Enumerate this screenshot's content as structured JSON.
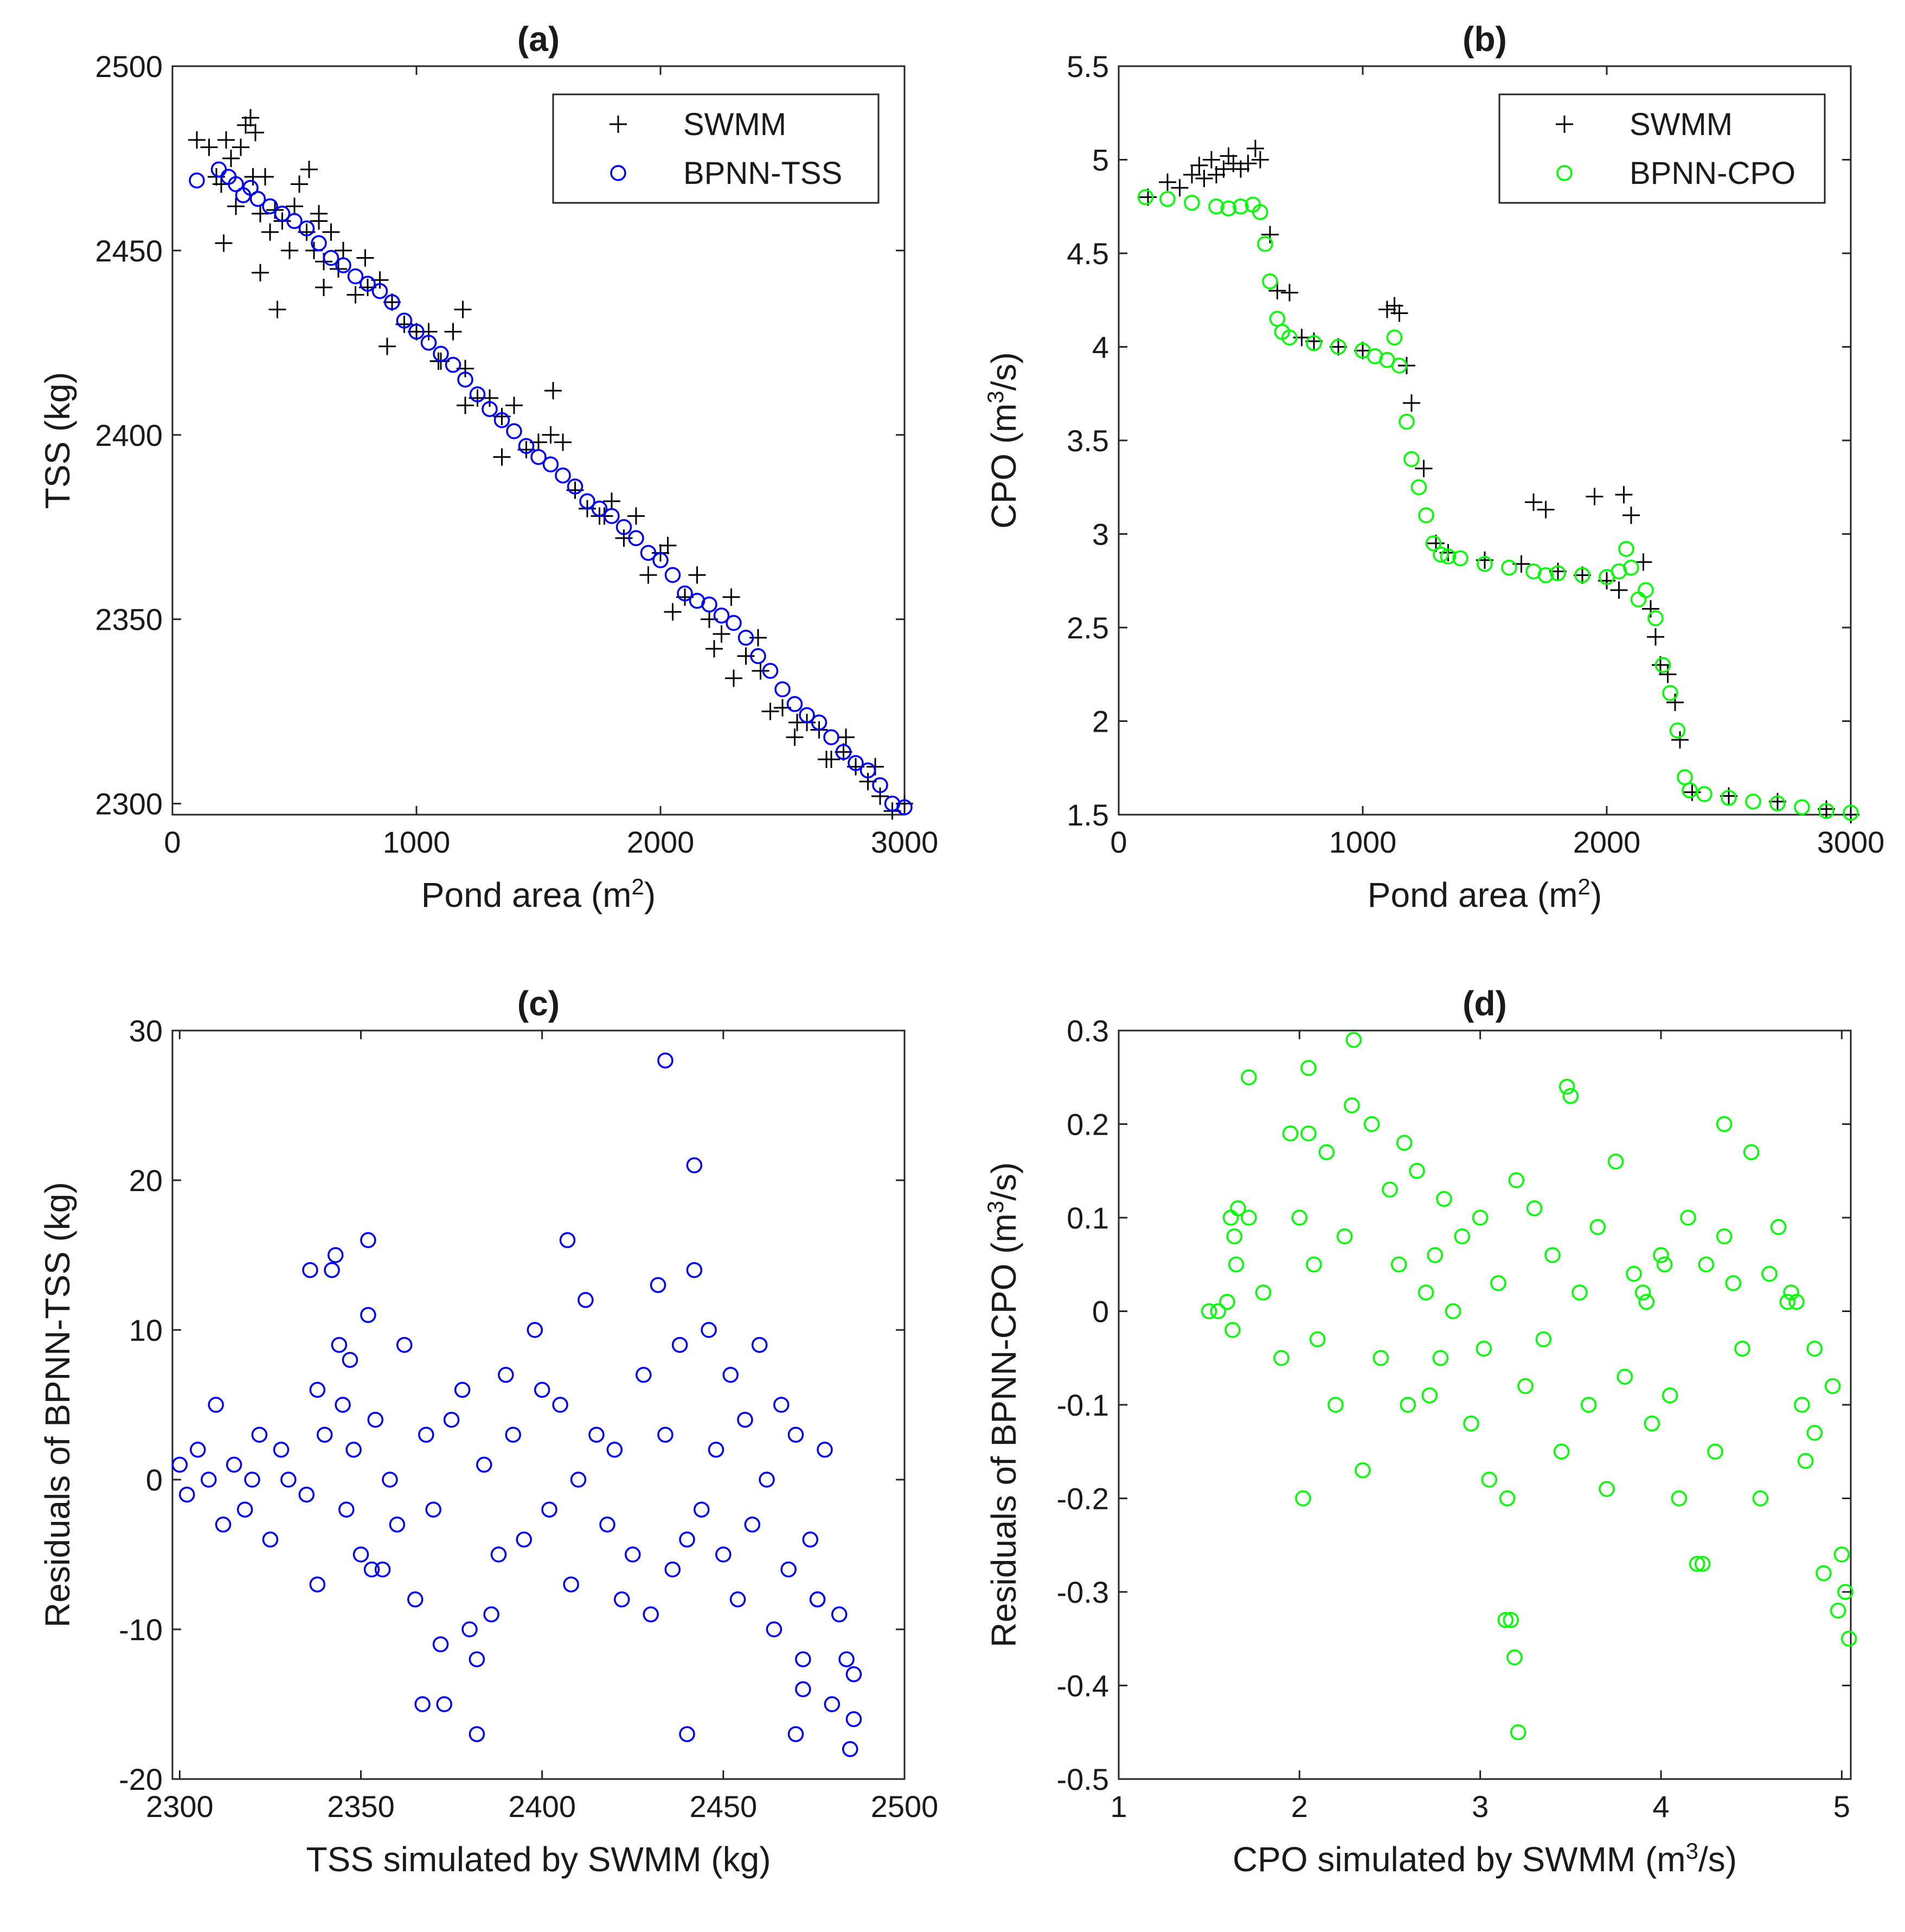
{
  "chart_data": [
    {
      "type": "scatter",
      "title": "(a)",
      "xlabel": "Pond area",
      "xlabel_unit": "(m",
      "xlabel_sup": "2",
      "xlabel_tail": ")",
      "ylabel": "TSS (kg)",
      "xlim": [
        0,
        3000
      ],
      "ylim": [
        2297,
        2500
      ],
      "xticks": [
        "0",
        "1000",
        "2000",
        "3000"
      ],
      "yticks": [
        "2300",
        "2350",
        "2400",
        "2450",
        "2500"
      ],
      "legend": {
        "position": "top-right",
        "entries": [
          "SWMM",
          "BPNN-TSS"
        ]
      },
      "series": [
        {
          "name": "SWMM",
          "marker": "plus",
          "color": "#000000",
          "x": [
            100,
            150,
            180,
            200,
            220,
            240,
            260,
            280,
            300,
            320,
            340,
            360,
            380,
            400,
            420,
            450,
            480,
            500,
            520,
            550,
            580,
            600,
            620,
            650,
            680,
            700,
            750,
            800,
            850,
            900,
            950,
            1000,
            1050,
            1100,
            1150,
            1200,
            1250,
            1300,
            1350,
            1400,
            1450,
            1500,
            1550,
            1600,
            1650,
            1700,
            1750,
            1800,
            1850,
            1900,
            1950,
            2000,
            2050,
            2100,
            2150,
            2200,
            2250,
            2300,
            2350,
            2400,
            2450,
            2500,
            2550,
            2600,
            2650,
            2700,
            2750,
            2800,
            2850,
            2900,
            2950,
            3000,
            210,
            330,
            360,
            430,
            560,
            600,
            620,
            790,
            880,
            1090,
            1190,
            1200,
            1350,
            1560,
            1770,
            2030,
            2220,
            2290,
            2410,
            2560,
            2680,
            2760,
            2880
          ],
          "y": [
            2480,
            2478,
            2470,
            2468,
            2480,
            2475,
            2462,
            2478,
            2484,
            2486,
            2482,
            2460,
            2470,
            2455,
            2461,
            2458,
            2450,
            2462,
            2468,
            2455,
            2450,
            2460,
            2447,
            2455,
            2445,
            2450,
            2438,
            2440,
            2442,
            2436,
            2430,
            2428,
            2428,
            2420,
            2428,
            2418,
            2410,
            2410,
            2405,
            2408,
            2396,
            2398,
            2400,
            2398,
            2385,
            2380,
            2378,
            2382,
            2372,
            2378,
            2362,
            2368,
            2352,
            2356,
            2362,
            2350,
            2346,
            2334,
            2340,
            2345,
            2325,
            2326,
            2318,
            2322,
            2320,
            2312,
            2314,
            2310,
            2306,
            2302,
            2298,
            2300,
            2452,
            2470,
            2444,
            2434,
            2472,
            2458,
            2440,
            2448,
            2424,
            2420,
            2434,
            2408,
            2394,
            2412,
            2378,
            2370,
            2342,
            2356,
            2336,
            2322,
            2312,
            2318,
            2310
          ]
        },
        {
          "name": "BPNN-TSS",
          "marker": "circle",
          "color": "#0000ff",
          "x": [
            100,
            190,
            230,
            260,
            290,
            320,
            350,
            400,
            450,
            500,
            550,
            600,
            650,
            700,
            750,
            800,
            850,
            900,
            950,
            1000,
            1050,
            1100,
            1150,
            1200,
            1250,
            1300,
            1350,
            1400,
            1450,
            1500,
            1550,
            1600,
            1650,
            1700,
            1750,
            1800,
            1850,
            1900,
            1950,
            2000,
            2050,
            2100,
            2150,
            2200,
            2250,
            2300,
            2350,
            2400,
            2450,
            2500,
            2550,
            2600,
            2650,
            2700,
            2750,
            2800,
            2850,
            2900,
            2950,
            3000
          ],
          "y": [
            2469,
            2472,
            2470,
            2468,
            2465,
            2467,
            2464,
            2462,
            2460,
            2458,
            2456,
            2452,
            2448,
            2446,
            2443,
            2441,
            2439,
            2436,
            2431,
            2428,
            2425,
            2422,
            2419,
            2415,
            2411,
            2407,
            2404,
            2401,
            2397,
            2394,
            2392,
            2389,
            2386,
            2382,
            2380,
            2378,
            2375,
            2372,
            2368,
            2366,
            2362,
            2357,
            2355,
            2354,
            2351,
            2349,
            2345,
            2340,
            2336,
            2331,
            2327,
            2324,
            2322,
            2318,
            2314,
            2311,
            2309,
            2305,
            2300,
            2299
          ]
        }
      ]
    },
    {
      "type": "scatter",
      "title": "(b)",
      "xlabel": "Pond area",
      "xlabel_unit": "(m",
      "xlabel_sup": "2",
      "xlabel_tail": ")",
      "ylabel": "CPO (m",
      "ylabel_sup": "3",
      "ylabel_tail": "/s)",
      "xlim": [
        0,
        3000
      ],
      "ylim": [
        1.5,
        5.5
      ],
      "xticks": [
        "0",
        "1000",
        "2000",
        "3000"
      ],
      "yticks": [
        "1.5",
        "2",
        "2.5",
        "3",
        "3.5",
        "4",
        "4.5",
        "5",
        "5.5"
      ],
      "legend": {
        "position": "top-right",
        "entries": [
          "SWMM",
          "BPNN-CPO"
        ]
      },
      "series": [
        {
          "name": "SWMM",
          "marker": "plus",
          "color": "#000000",
          "x": [
            120,
            200,
            250,
            300,
            330,
            350,
            380,
            400,
            430,
            450,
            470,
            500,
            530,
            560,
            580,
            620,
            650,
            700,
            750,
            800,
            900,
            1000,
            1100,
            1130,
            1150,
            1180,
            1200,
            1250,
            1300,
            1350,
            1500,
            1650,
            1700,
            1750,
            1800,
            1900,
            1950,
            2000,
            2050,
            2070,
            2100,
            2150,
            2180,
            2200,
            2220,
            2250,
            2280,
            2300,
            2350,
            2500,
            2700,
            2900,
            3000
          ],
          "y": [
            4.8,
            4.88,
            4.85,
            4.92,
            4.97,
            4.9,
            5.0,
            4.92,
            4.95,
            5.02,
            4.98,
            4.95,
            4.98,
            5.06,
            5.0,
            4.6,
            4.3,
            4.29,
            4.05,
            4.03,
            4.0,
            3.98,
            4.2,
            4.22,
            4.18,
            3.9,
            3.7,
            3.35,
            2.95,
            2.9,
            2.86,
            2.84,
            3.17,
            3.13,
            2.8,
            2.78,
            3.2,
            2.75,
            2.7,
            3.21,
            3.1,
            2.85,
            2.6,
            2.45,
            2.3,
            2.25,
            2.1,
            1.9,
            1.62,
            1.6,
            1.57,
            1.53,
            1.5
          ]
        },
        {
          "name": "BPNN-CPO",
          "marker": "circle",
          "color": "#00ff00",
          "x": [
            110,
            200,
            300,
            400,
            450,
            500,
            550,
            580,
            600,
            620,
            650,
            670,
            700,
            800,
            900,
            1000,
            1050,
            1100,
            1130,
            1150,
            1180,
            1200,
            1230,
            1260,
            1290,
            1320,
            1350,
            1400,
            1500,
            1600,
            1700,
            1750,
            1800,
            1900,
            2000,
            2050,
            2080,
            2100,
            2130,
            2160,
            2200,
            2230,
            2260,
            2290,
            2320,
            2340,
            2400,
            2500,
            2600,
            2700,
            2800,
            2900,
            3000
          ],
          "y": [
            4.8,
            4.79,
            4.77,
            4.75,
            4.74,
            4.75,
            4.76,
            4.72,
            4.55,
            4.35,
            4.15,
            4.08,
            4.05,
            4.02,
            4.0,
            3.98,
            3.95,
            3.93,
            4.05,
            3.9,
            3.6,
            3.4,
            3.25,
            3.1,
            2.95,
            2.89,
            2.88,
            2.87,
            2.84,
            2.82,
            2.8,
            2.78,
            2.79,
            2.78,
            2.77,
            2.8,
            2.92,
            2.82,
            2.65,
            2.7,
            2.55,
            2.3,
            2.15,
            1.95,
            1.7,
            1.63,
            1.61,
            1.59,
            1.57,
            1.56,
            1.54,
            1.52,
            1.51
          ]
        }
      ]
    },
    {
      "type": "scatter",
      "title": "(c)",
      "xlabel": "TSS simulated by SWMM (kg)",
      "ylabel": "Residuals of BPNN-TSS (kg)",
      "xlim": [
        2298,
        2500
      ],
      "ylim": [
        -20,
        30
      ],
      "xticks": [
        "2300",
        "2350",
        "2400",
        "2450",
        "2500"
      ],
      "yticks": [
        "-20",
        "-10",
        "0",
        "10",
        "20",
        "30"
      ],
      "series": [
        {
          "name": "Residuals",
          "marker": "circle",
          "color": "#0000ff",
          "x": [
            2300,
            2302,
            2305,
            2308,
            2310,
            2312,
            2315,
            2318,
            2320,
            2322,
            2325,
            2328,
            2330,
            2335,
            2338,
            2340,
            2342,
            2344,
            2345,
            2346,
            2347,
            2348,
            2350,
            2352,
            2354,
            2356,
            2358,
            2360,
            2362,
            2365,
            2368,
            2370,
            2372,
            2375,
            2378,
            2380,
            2382,
            2384,
            2386,
            2388,
            2390,
            2392,
            2395,
            2398,
            2400,
            2402,
            2405,
            2408,
            2410,
            2412,
            2415,
            2418,
            2420,
            2422,
            2425,
            2428,
            2430,
            2432,
            2434,
            2436,
            2438,
            2440,
            2442,
            2444,
            2446,
            2448,
            2450,
            2452,
            2454,
            2456,
            2458,
            2460,
            2462,
            2464,
            2466,
            2468,
            2470,
            2472,
            2474,
            2476,
            2478,
            2480,
            2482,
            2484,
            2486,
            2434,
            2442,
            2407,
            2352,
            2343,
            2382,
            2367,
            2373,
            2440,
            2485,
            2470,
            2472,
            2486,
            2476,
            2353,
            2338,
            2336
          ],
          "y": [
            1,
            -1,
            2,
            0,
            5,
            -3,
            1,
            -2,
            0,
            3,
            -4,
            2,
            0,
            -1,
            6,
            3,
            14,
            9,
            5,
            -2,
            8,
            2,
            -5,
            11,
            4,
            -6,
            0,
            -3,
            9,
            -8,
            3,
            -2,
            -11,
            4,
            6,
            -10,
            -12,
            1,
            -9,
            -5,
            7,
            3,
            -4,
            10,
            6,
            -2,
            5,
            -7,
            0,
            12,
            3,
            -3,
            2,
            -8,
            -5,
            7,
            -9,
            13,
            3,
            -6,
            9,
            -4,
            14,
            -2,
            10,
            2,
            -5,
            7,
            -8,
            4,
            -3,
            9,
            0,
            -10,
            5,
            -6,
            3,
            -12,
            -4,
            -8,
            2,
            -15,
            -9,
            -12,
            -16,
            28,
            21,
            16,
            16,
            15,
            -17,
            -15,
            -15,
            -17,
            -18,
            -17,
            -14,
            -13,
            -8,
            -6,
            -7,
            14
          ]
        }
      ]
    },
    {
      "type": "scatter",
      "title": "(d)",
      "xlabel": "CPO simulated by SWMM (m",
      "xlabel_sup": "3",
      "xlabel_tail": "/s)",
      "ylabel": "Residuals of BPNN-CPO (m",
      "ylabel_sup": "3",
      "ylabel_tail": "/s)",
      "xlim": [
        1,
        5.05
      ],
      "ylim": [
        -0.5,
        0.3
      ],
      "xticks": [
        "1",
        "2",
        "3",
        "4",
        "5"
      ],
      "yticks": [
        "-0.5",
        "-0.4",
        "-0.3",
        "-0.2",
        "-0.1",
        "0",
        "0.1",
        "0.2",
        "0.3"
      ],
      "series": [
        {
          "name": "Residuals",
          "marker": "circle",
          "color": "#00ff00",
          "x": [
            1.5,
            1.55,
            1.6,
            1.62,
            1.63,
            1.64,
            1.65,
            1.66,
            1.72,
            1.8,
            1.9,
            1.95,
            2.0,
            2.02,
            2.05,
            2.08,
            2.1,
            2.15,
            2.2,
            2.25,
            2.3,
            2.35,
            2.4,
            2.45,
            2.5,
            2.55,
            2.6,
            2.65,
            2.7,
            2.72,
            2.75,
            2.78,
            2.8,
            2.85,
            2.9,
            2.95,
            3.0,
            3.05,
            3.1,
            3.15,
            3.2,
            3.25,
            3.3,
            3.35,
            3.4,
            3.45,
            3.5,
            3.55,
            3.6,
            3.65,
            3.7,
            3.75,
            3.8,
            3.85,
            3.9,
            3.92,
            3.95,
            4.0,
            4.02,
            4.05,
            4.1,
            4.15,
            4.2,
            4.25,
            4.3,
            4.35,
            4.4,
            4.45,
            4.5,
            4.55,
            4.6,
            4.65,
            4.7,
            4.72,
            4.75,
            4.78,
            4.8,
            4.85,
            4.9,
            4.95,
            5.0,
            5.04,
            3.21,
            3.19,
            3.17,
            3.14,
            2.29,
            2.05,
            3.48,
            4.35,
            1.72,
            2.58,
            4.23,
            4.98,
            5.02,
            4.85,
            3.02
          ],
          "y": [
            0,
            0,
            0.01,
            0.1,
            -0.02,
            0.08,
            0.05,
            0.11,
            0.25,
            0.02,
            -0.05,
            0.19,
            0.1,
            -0.2,
            0.26,
            0.05,
            -0.03,
            0.17,
            -0.1,
            0.08,
            0.29,
            -0.17,
            0.2,
            -0.05,
            0.13,
            0.05,
            -0.1,
            0.15,
            0.02,
            -0.09,
            0.06,
            -0.05,
            0.12,
            0,
            0.08,
            -0.12,
            0.1,
            -0.18,
            0.03,
            -0.2,
            0.14,
            -0.08,
            0.11,
            -0.03,
            0.06,
            -0.15,
            0.23,
            0.02,
            -0.1,
            0.09,
            -0.19,
            0.16,
            -0.07,
            0.04,
            0.02,
            0.01,
            -0.12,
            0.06,
            0.05,
            -0.09,
            -0.2,
            0.1,
            -0.27,
            0.05,
            -0.15,
            0.08,
            0.03,
            -0.04,
            0.17,
            -0.2,
            0.04,
            0.09,
            0.01,
            0.02,
            0.01,
            -0.1,
            -0.16,
            -0.04,
            -0.28,
            -0.08,
            -0.26,
            -0.35,
            -0.45,
            -0.37,
            -0.33,
            -0.33,
            0.22,
            0.19,
            0.24,
            0.2,
            0.1,
            0.18,
            -0.27,
            -0.32,
            -0.3,
            -0.13,
            -0.04
          ]
        }
      ]
    }
  ]
}
